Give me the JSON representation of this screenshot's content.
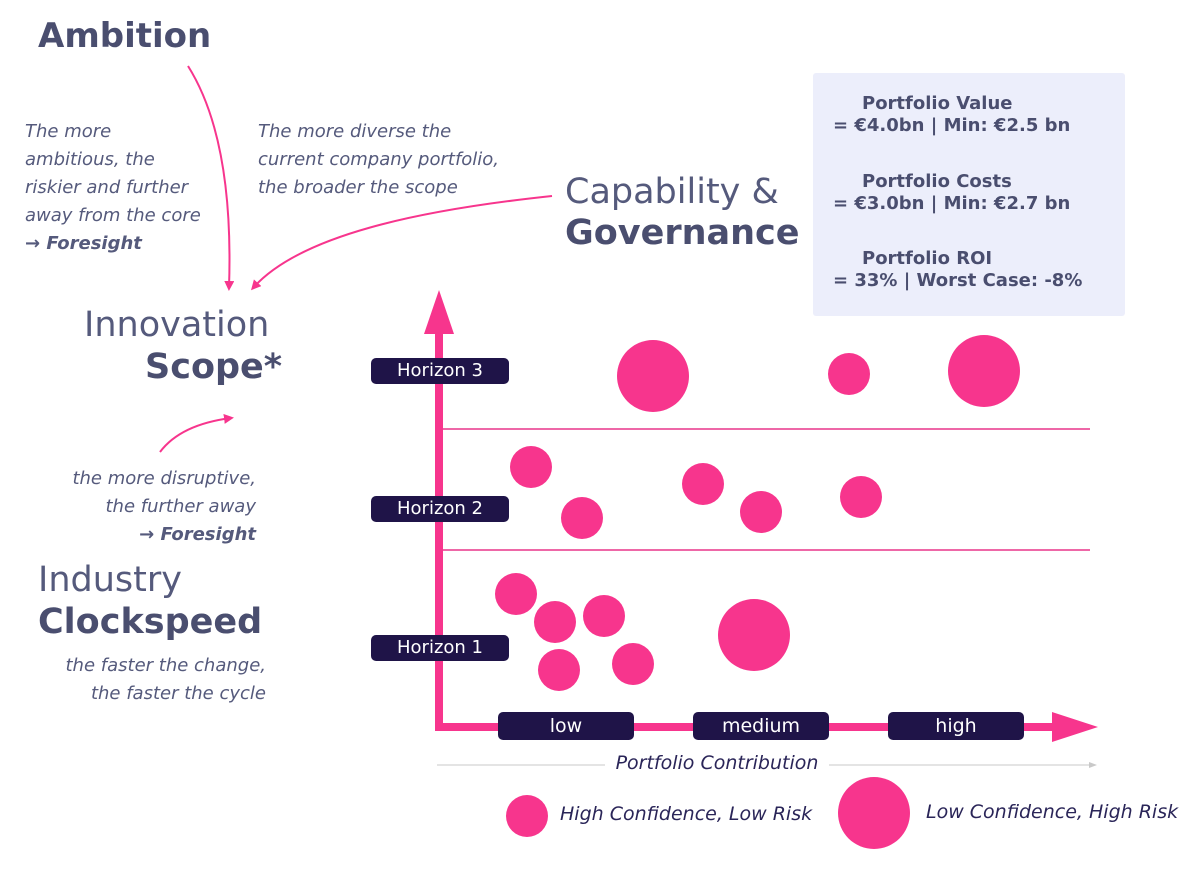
{
  "colors": {
    "accent": "#f7358d",
    "dark_chip": "#1f1448",
    "text": "#4a4e6f",
    "panel_bg": "#eceefb",
    "band_line": "#e9358a"
  },
  "ambition": {
    "title": "Ambition",
    "note_lines": [
      "The more",
      "ambitious, the",
      "riskier and further",
      "away from the core"
    ],
    "note_foresight": "→  Foresight"
  },
  "scope_note": {
    "lines": [
      "The more diverse the",
      "current company portfolio,",
      "the broader the scope"
    ]
  },
  "capability": {
    "line1": "Capability &",
    "line2": "Governance"
  },
  "innovation": {
    "line1": "Innovation",
    "line2": "Scope*"
  },
  "disruptive_note": {
    "lines": [
      "the more disruptive,",
      "the further away"
    ],
    "foresight": "→  Foresight"
  },
  "industry": {
    "line1": "Industry",
    "line2": "Clockspeed",
    "note_lines": [
      "the faster the change,",
      "the faster the cycle"
    ]
  },
  "metrics": [
    {
      "label": "Portfolio Value",
      "value": "= €4.0bn | Min: €2.5 bn"
    },
    {
      "label": "Portfolio Costs",
      "value": "= €3.0bn | Min: €2.7 bn"
    },
    {
      "label": "Portfolio ROI",
      "value": "= 33% | Worst Case: -8%"
    }
  ],
  "horizons": [
    "Horizon 3",
    "Horizon 2",
    "Horizon 1"
  ],
  "contribution_levels": [
    "low",
    "medium",
    "high"
  ],
  "axis_title": "Portfolio Contribution",
  "legend": {
    "small": "High Confidence, Low Risk",
    "large": "Low Confidence, High Risk"
  }
}
